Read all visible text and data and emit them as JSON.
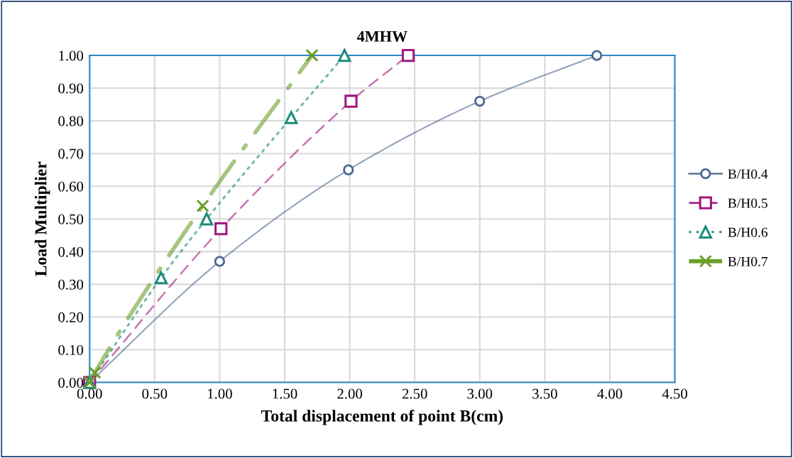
{
  "chart_data": {
    "type": "line",
    "title": "4MHW",
    "xlabel": "Total displacement of point B(cm)",
    "ylabel": "Load Multiplier",
    "xlim": [
      0,
      4.5
    ],
    "xticks": [
      {
        "value": 0,
        "label": "0.00"
      },
      {
        "value": 0.5,
        "label": "0.50"
      },
      {
        "value": 1,
        "label": "1.00"
      },
      {
        "value": 1.5,
        "label": "1.50"
      },
      {
        "value": 2,
        "label": "2.00"
      },
      {
        "value": 2.5,
        "label": "2.50"
      },
      {
        "value": 3,
        "label": "3.00"
      },
      {
        "value": 3.5,
        "label": "3.50"
      },
      {
        "value": 4,
        "label": "4.00"
      },
      {
        "value": 4.5,
        "label": "4.50"
      }
    ],
    "ylim": [
      0,
      1
    ],
    "yticks": [
      {
        "value": 0,
        "label": "0.00"
      },
      {
        "value": 0.1,
        "label": "0.10"
      },
      {
        "value": 0.2,
        "label": "0.20"
      },
      {
        "value": 0.3,
        "label": "0.30"
      },
      {
        "value": 0.4,
        "label": "0.40"
      },
      {
        "value": 0.5,
        "label": "0.50"
      },
      {
        "value": 0.6,
        "label": "0.60"
      },
      {
        "value": 0.7,
        "label": "0.70"
      },
      {
        "value": 0.8,
        "label": "0.80"
      },
      {
        "value": 0.9,
        "label": "0.90"
      },
      {
        "value": 1,
        "label": "1.00"
      }
    ],
    "grid": true,
    "legend": "right",
    "series": [
      {
        "name": "B/H0.4",
        "color": "#4a6690",
        "line_style": "solid",
        "marker": "circle",
        "x": [
          0,
          1.0,
          1.99,
          3.0,
          3.9
        ],
        "values": [
          0,
          0.37,
          0.65,
          0.86,
          1.0
        ]
      },
      {
        "name": "B/H0.5",
        "color": "#a0197f",
        "line_style": "dashed",
        "marker": "square",
        "x": [
          0,
          1.01,
          2.01,
          2.45
        ],
        "values": [
          0,
          0.47,
          0.86,
          1.0
        ]
      },
      {
        "name": "B/H0.6",
        "color": "#1a8c7a",
        "line_style": "dotted",
        "marker": "triangle",
        "x": [
          0,
          0.55,
          0.9,
          1.55,
          1.96
        ],
        "values": [
          0,
          0.32,
          0.5,
          0.81,
          1.0
        ]
      },
      {
        "name": "B/H0.7",
        "color": "#6a9e2a",
        "line_style": "dashdot",
        "marker": "cross",
        "x": [
          0,
          0.04,
          0.87,
          1.71
        ],
        "values": [
          0,
          0.03,
          0.54,
          1.0
        ]
      }
    ]
  }
}
